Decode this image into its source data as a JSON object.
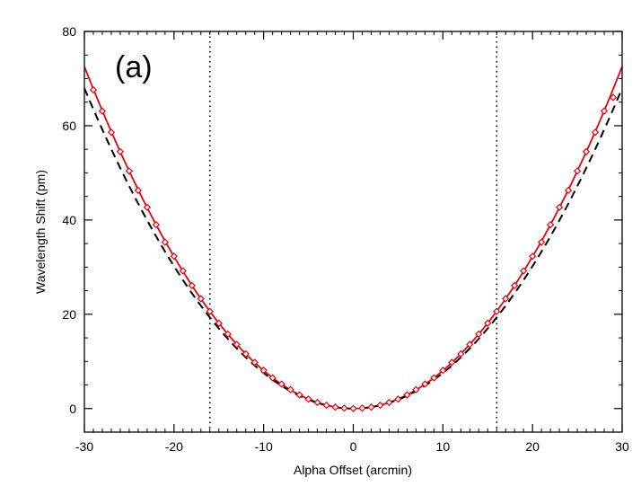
{
  "chart_data": {
    "type": "line",
    "panel_label": "(a)",
    "xlabel": "Alpha Offset (arcmin)",
    "ylabel": "Wavelength Shift (pm)",
    "xlim": [
      -30,
      30
    ],
    "ylim": [
      -5,
      80
    ],
    "x_ticks": [
      -30,
      -20,
      -10,
      0,
      10,
      20,
      30
    ],
    "y_ticks": [
      0,
      20,
      40,
      60,
      80
    ],
    "vertical_lines": [
      -16,
      16
    ],
    "series": [
      {
        "style": "solid",
        "color": "#e8000b",
        "curve": "quadratic",
        "coefficient": 0.0806
      },
      {
        "style": "dashed",
        "color": "#000000",
        "curve": "quadratic",
        "coefficient": 0.0755
      },
      {
        "style": "markers",
        "marker": "diamond",
        "color": "#e8000b",
        "x": [
          -29,
          -28,
          -27,
          -26,
          -25,
          -24,
          -23,
          -22,
          -21,
          -20,
          -19,
          -18,
          -17,
          -16,
          -15,
          -14,
          -13,
          -12,
          -11,
          -10,
          -9,
          -8,
          -7,
          -6,
          -5,
          -4,
          -3,
          -2,
          -1,
          0,
          1,
          2,
          3,
          4,
          5,
          6,
          7,
          8,
          9,
          10,
          11,
          12,
          13,
          14,
          15,
          16,
          17,
          18,
          19,
          20,
          21,
          22,
          23,
          24,
          25,
          26,
          27,
          28,
          29
        ],
        "y": [
          67.6,
          63.1,
          58.6,
          54.5,
          50.4,
          46.3,
          42.7,
          39.0,
          35.3,
          32.3,
          29.2,
          26.1,
          23.3,
          20.6,
          18.1,
          15.8,
          13.6,
          11.6,
          9.8,
          8.1,
          6.5,
          5.2,
          4.0,
          2.9,
          2.0,
          1.3,
          0.7,
          0.3,
          0.1,
          0.0,
          0.1,
          0.3,
          0.7,
          1.3,
          2.0,
          2.9,
          4.0,
          5.2,
          6.5,
          8.1,
          9.8,
          11.6,
          13.6,
          15.8,
          18.1,
          20.6,
          23.3,
          26.1,
          29.2,
          32.3,
          35.3,
          39.0,
          42.7,
          46.3,
          50.4,
          54.5,
          58.6,
          63.1,
          66.0
        ]
      }
    ]
  }
}
